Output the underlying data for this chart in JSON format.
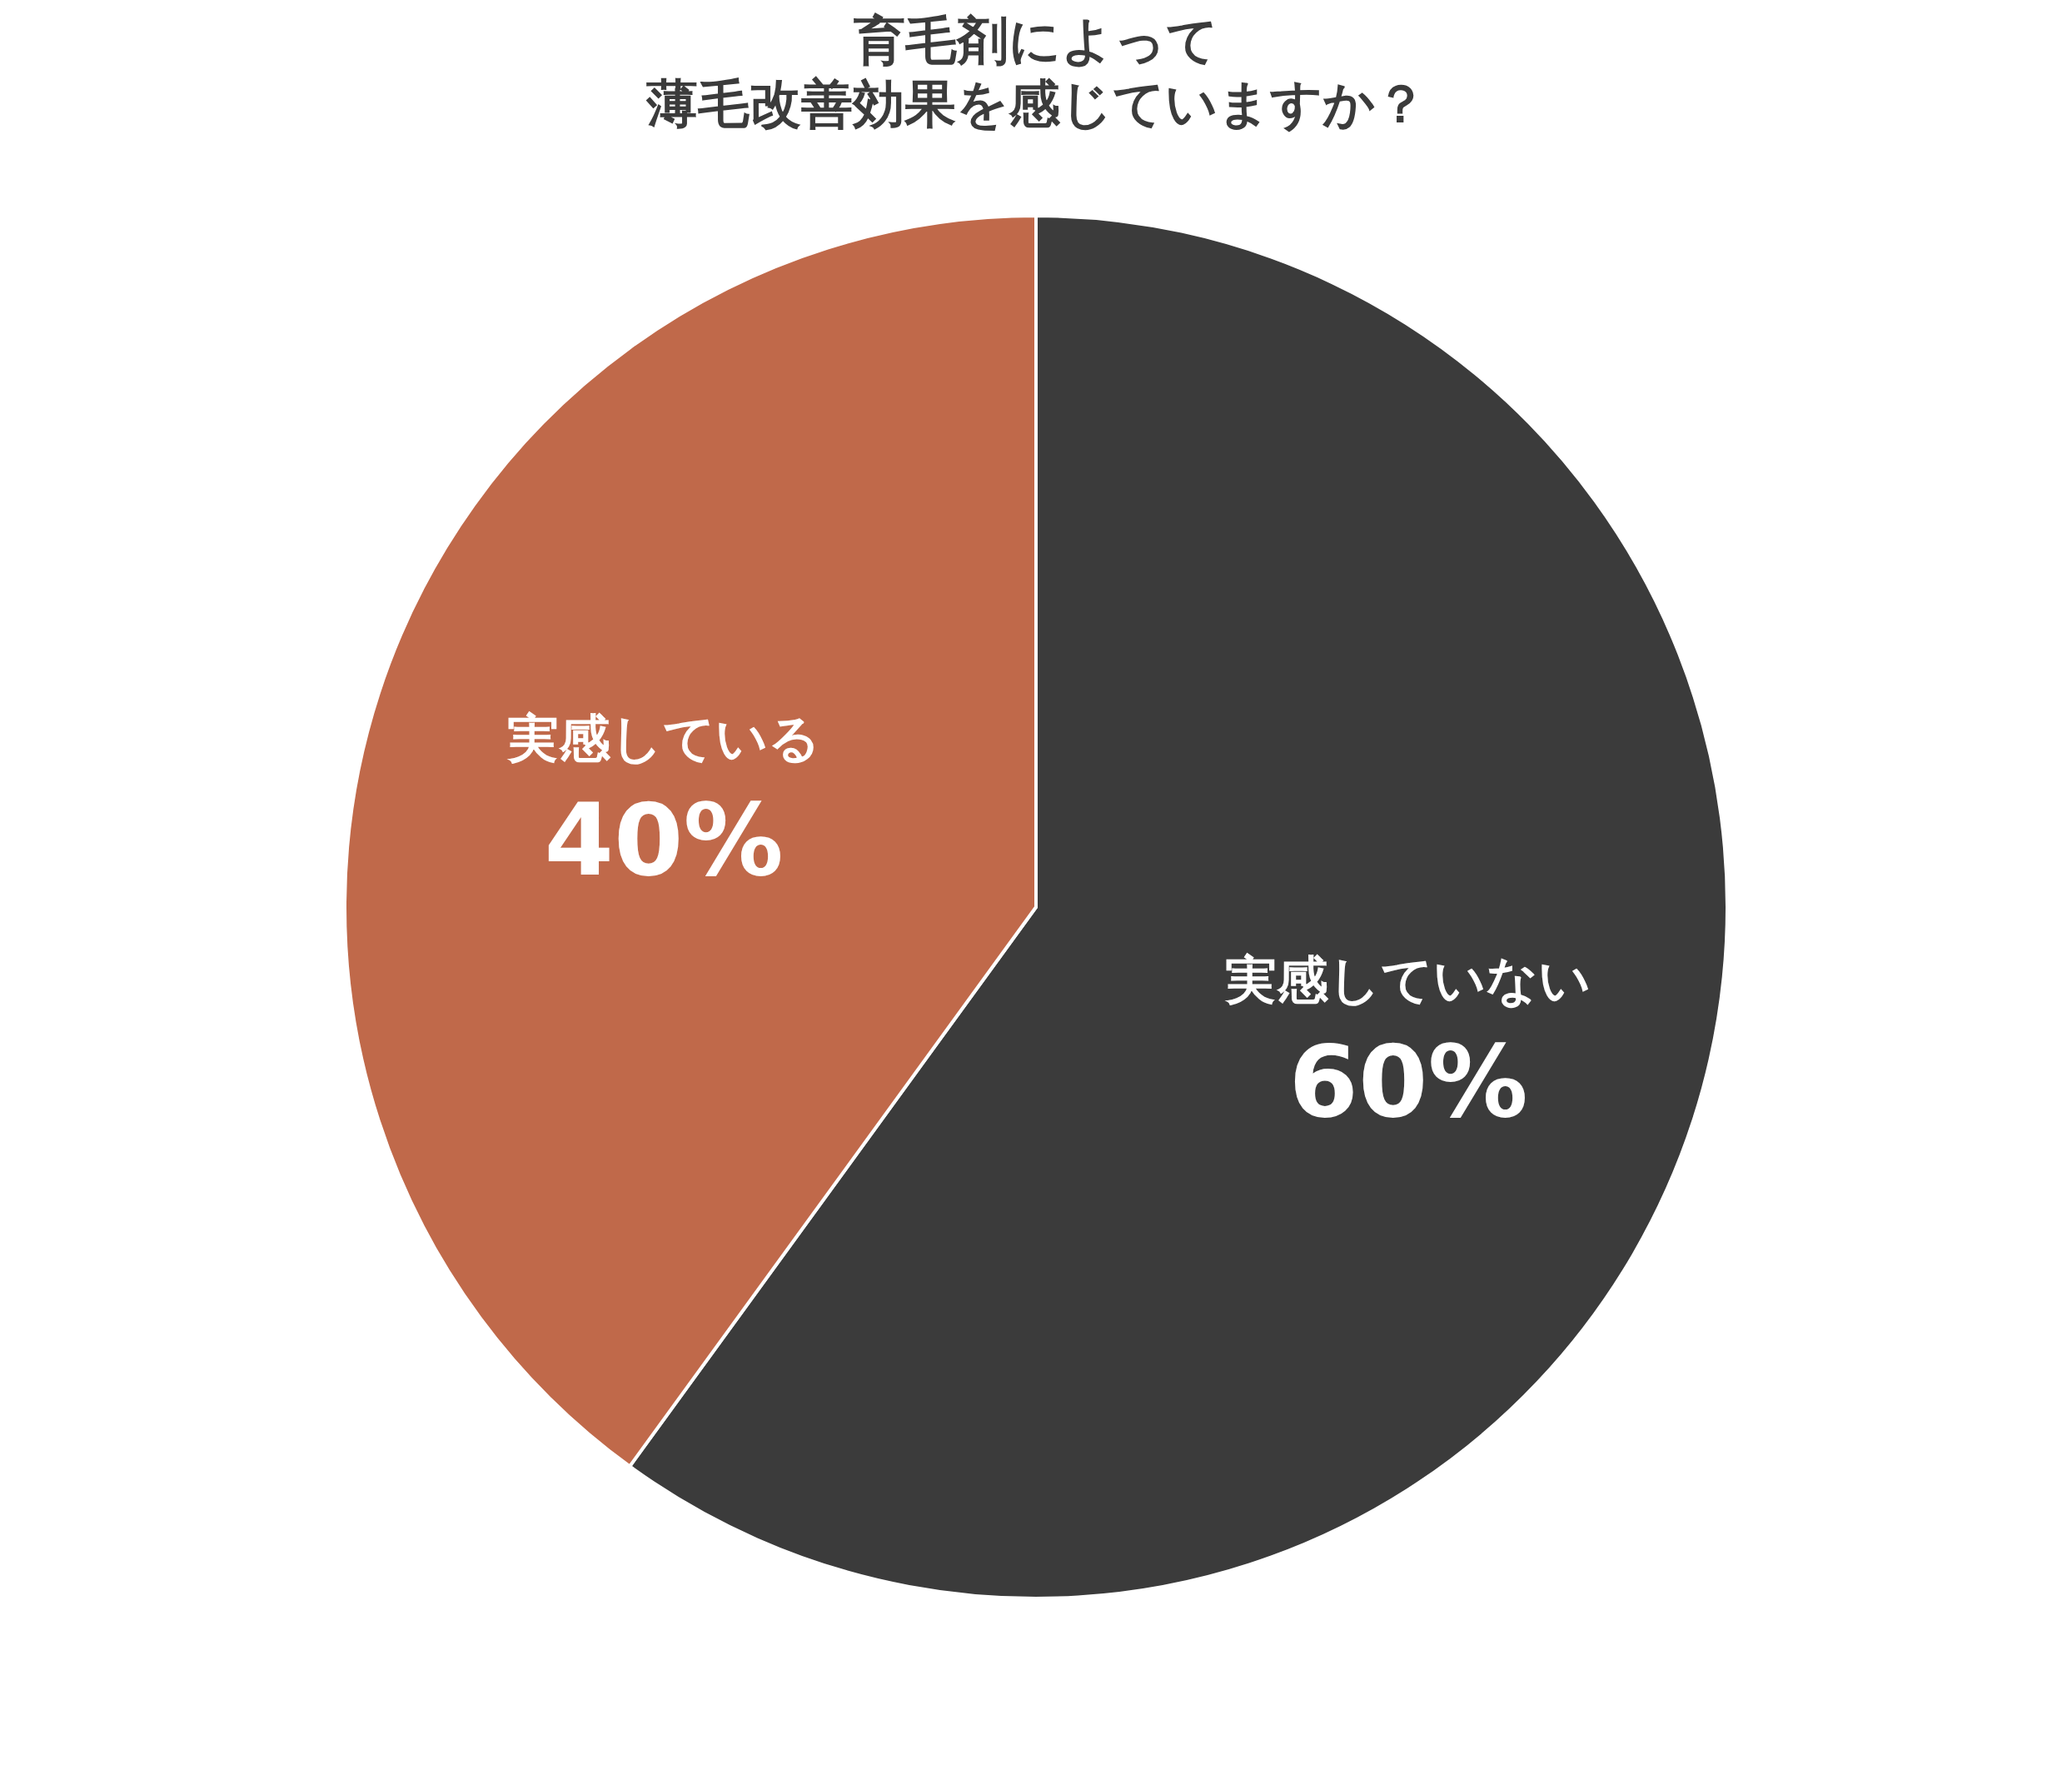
{
  "chart_data": {
    "type": "pie",
    "title": "育毛剤によって",
    "subtitle": "薄毛改善効果を感じていますか？",
    "categories": [
      "実感していない",
      "実感している"
    ],
    "values": [
      60,
      40
    ],
    "colors": [
      "#3b3b3b",
      "#c0694a"
    ],
    "value_labels": [
      "60%",
      "40%"
    ],
    "legend": false
  }
}
